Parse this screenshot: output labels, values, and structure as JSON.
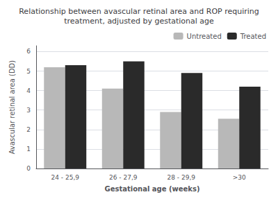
{
  "chart_data": {
    "type": "bar",
    "title": "Relationship between avascular retinal area and ROP requiring\ntreatment, adjusted by gestational age",
    "xlabel": "Gestational age (weeks)",
    "ylabel": "Avascular retinal area (DD)",
    "categories": [
      "24 - 25,9",
      "26 - 27,9",
      "28 - 29,9",
      ">30"
    ],
    "series": [
      {
        "name": "Untreated",
        "color": "#b8b8b8",
        "values": [
          5.2,
          4.1,
          2.9,
          2.55
        ]
      },
      {
        "name": "Treated",
        "color": "#2a2a2a",
        "values": [
          5.3,
          5.5,
          4.9,
          4.2
        ]
      }
    ],
    "ylim": [
      0,
      6.3
    ],
    "yticks": [
      0,
      1,
      2,
      3,
      4,
      5,
      6
    ],
    "grid": true,
    "legend": "upper right"
  }
}
